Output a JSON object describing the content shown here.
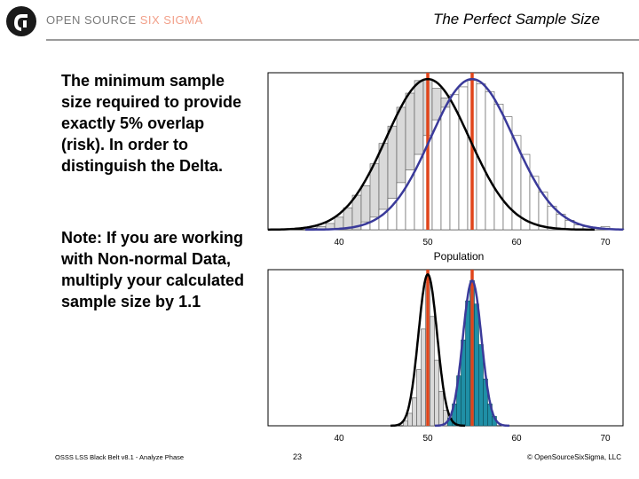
{
  "header": {
    "brand_part1": "OPEN SOURCE",
    "brand_part2": "SIX SIGMA",
    "title": "The Perfect Sample Size"
  },
  "body": {
    "paragraph1": "The minimum sample size required to provide exactly 5% overlap (risk). In order to distinguish the Delta.",
    "paragraph2": "Note: If you are working with Non-normal Data, multiply your calculated sample size by 1.1"
  },
  "footer": {
    "left": "OSSS LSS Black Belt v8.1 - Analyze Phase",
    "page": "23",
    "right": "© OpenSourceSixSigma, LLC"
  },
  "colors": {
    "black_curve": "#000000",
    "blue_curve": "#3a3a9a",
    "red_line": "#e0451b",
    "gray_bar": "#d9d9d9",
    "white_bar": "#ffffff",
    "teal_bar": "#1f8fa6",
    "brand_accent": "#f2a08a"
  },
  "chart_data": [
    {
      "type": "histogram",
      "xlabel": "Population",
      "xlim": [
        32,
        72
      ],
      "xticks": [
        40,
        50,
        60,
        70
      ],
      "ylim": [
        0,
        1.0
      ],
      "grid": false,
      "vlines": [
        50,
        55
      ],
      "series": [
        {
          "fill": "gray",
          "bin_width": 1,
          "bins": [
            [
              37,
              0.01
            ],
            [
              38,
              0.02
            ],
            [
              39,
              0.04
            ],
            [
              40,
              0.08
            ],
            [
              41,
              0.14
            ],
            [
              42,
              0.22
            ],
            [
              43,
              0.28
            ],
            [
              44,
              0.42
            ],
            [
              45,
              0.55
            ],
            [
              46,
              0.66
            ],
            [
              47,
              0.78
            ],
            [
              48,
              0.87
            ],
            [
              49,
              0.95
            ],
            [
              50,
              0.96
            ],
            [
              51,
              0.9
            ],
            [
              52,
              0.84
            ],
            [
              53,
              0.74
            ],
            [
              54,
              0.63
            ],
            [
              55,
              0.53
            ],
            [
              56,
              0.4
            ],
            [
              57,
              0.3
            ],
            [
              58,
              0.2
            ],
            [
              59,
              0.12
            ],
            [
              60,
              0.07
            ],
            [
              61,
              0.04
            ],
            [
              62,
              0.02
            ],
            [
              63,
              0.01
            ]
          ],
          "curve": {
            "color": "black",
            "mean": 50,
            "sd": 4.7,
            "peak": 0.96
          }
        },
        {
          "fill": "white",
          "bin_width": 1,
          "bins": [
            [
              43,
              0.05
            ],
            [
              44,
              0.08
            ],
            [
              45,
              0.13
            ],
            [
              46,
              0.2
            ],
            [
              47,
              0.3
            ],
            [
              48,
              0.38
            ],
            [
              49,
              0.48
            ],
            [
              50,
              0.6
            ],
            [
              51,
              0.7
            ],
            [
              52,
              0.78
            ],
            [
              53,
              0.86
            ],
            [
              54,
              0.91
            ],
            [
              55,
              0.95
            ],
            [
              56,
              0.93
            ],
            [
              57,
              0.88
            ],
            [
              58,
              0.8
            ],
            [
              59,
              0.72
            ],
            [
              60,
              0.6
            ],
            [
              61,
              0.48
            ],
            [
              62,
              0.34
            ],
            [
              63,
              0.24
            ],
            [
              64,
              0.15
            ],
            [
              65,
              0.1
            ],
            [
              66,
              0.06
            ],
            [
              67,
              0.03
            ],
            [
              68,
              0.02
            ],
            [
              69,
              0.01
            ],
            [
              70,
              0.02
            ]
          ],
          "curve": {
            "color": "blue",
            "mean": 55,
            "sd": 4.7,
            "peak": 0.96
          }
        }
      ]
    },
    {
      "type": "histogram",
      "xlabel": "",
      "xlim": [
        32,
        72
      ],
      "xticks": [
        40,
        50,
        60,
        70
      ],
      "ylim": [
        0,
        1.0
      ],
      "grid": false,
      "vlines": [
        50,
        55
      ],
      "series": [
        {
          "fill": "gray",
          "bin_width": 0.5,
          "bins": [
            [
              47.5,
              0.03
            ],
            [
              48,
              0.08
            ],
            [
              48.5,
              0.18
            ],
            [
              49,
              0.36
            ],
            [
              49.5,
              0.62
            ],
            [
              50,
              0.92
            ],
            [
              50.5,
              0.7
            ],
            [
              51,
              0.42
            ],
            [
              51.5,
              0.22
            ],
            [
              52,
              0.1
            ],
            [
              52.5,
              0.04
            ]
          ],
          "curve": {
            "color": "black",
            "mean": 50,
            "sd": 1.05,
            "peak": 0.97
          }
        },
        {
          "fill": "teal",
          "bin_width": 0.5,
          "bins": [
            [
              52.5,
              0.05
            ],
            [
              53,
              0.14
            ],
            [
              53.5,
              0.32
            ],
            [
              54,
              0.55
            ],
            [
              54.5,
              0.8
            ],
            [
              55,
              0.93
            ],
            [
              55.5,
              0.78
            ],
            [
              56,
              0.52
            ],
            [
              56.5,
              0.3
            ],
            [
              57,
              0.14
            ],
            [
              57.5,
              0.06
            ]
          ],
          "curve": {
            "color": "blue",
            "mean": 55,
            "sd": 1.05,
            "peak": 0.93
          }
        }
      ]
    }
  ]
}
